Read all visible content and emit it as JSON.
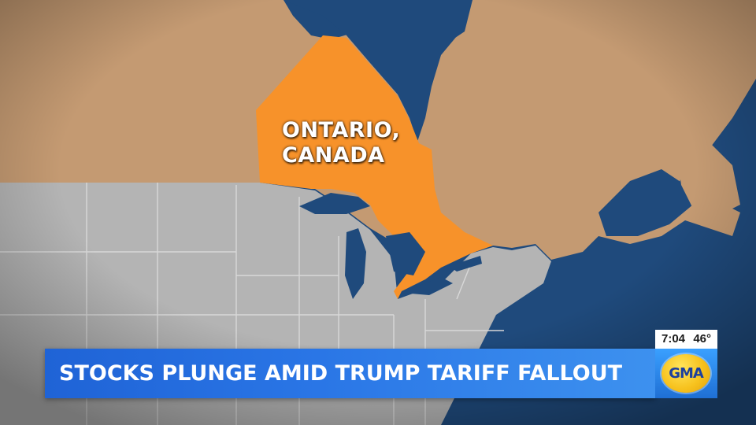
{
  "map": {
    "region_label_line1": "ONTARIO,",
    "region_label_line2": "CANADA",
    "colors": {
      "ocean": "#1f4a7c",
      "canada": "#c49a72",
      "ontario": "#f7922a",
      "usa": "#b4b4b4",
      "borders": "#d8d8d8"
    }
  },
  "lower_third": {
    "headline": "STOCKS PLUNGE AMID TRUMP TARIFF FALLOUT"
  },
  "bug": {
    "time": "7:04",
    "temperature": "46°",
    "logo_text": "GMA"
  }
}
